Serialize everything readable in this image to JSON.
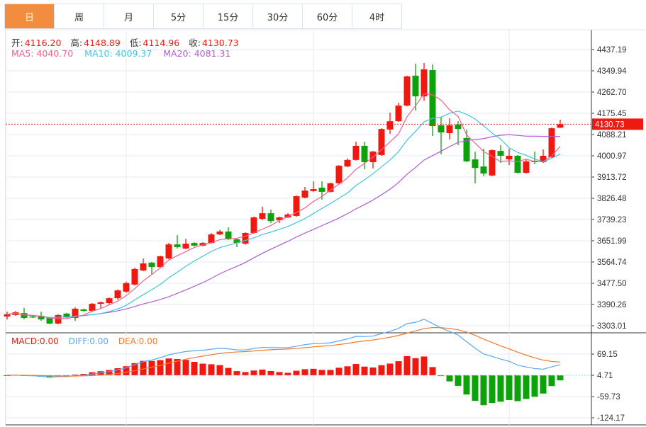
{
  "tabs": [
    {
      "label": "日",
      "active": true
    },
    {
      "label": "周"
    },
    {
      "label": "月"
    },
    {
      "label": "5分"
    },
    {
      "label": "15分"
    },
    {
      "label": "30分"
    },
    {
      "label": "60分"
    },
    {
      "label": "4时"
    }
  ],
  "ohlc_legend": {
    "open_label": "开:",
    "open": "4116.20",
    "high_label": "高:",
    "high": "4148.89",
    "low_label": "低:",
    "low": "4114.96",
    "close_label": "收:",
    "close": "4130.73"
  },
  "ma_legend": {
    "ma5": "MA5: 4040.70",
    "ma10": "MA10: 4009.37",
    "ma20": "MA20: 4081.31"
  },
  "macd_legend": {
    "macd": "MACD:0.00",
    "diff": "DIFF:0.00",
    "dea": "DEA:0.00"
  },
  "colors": {
    "up": "#f0190f",
    "down": "#0ca20c",
    "ma5": "#f0608e",
    "ma10": "#3ec6dc",
    "ma20": "#b05ccf",
    "diff": "#5aa9f0",
    "dea": "#f5792a",
    "accent": "#f28c3e"
  },
  "chart_data": {
    "type": "candlestick",
    "price_axis": {
      "ticks": [
        "4437.19",
        "4349.94",
        "4262.70",
        "4175.45",
        "4088.21",
        "4000.97",
        "3913.72",
        "3826.48",
        "3739.23",
        "3651.99",
        "3564.74",
        "3477.50",
        "3390.26",
        "3303.01"
      ],
      "range": [
        3303.01,
        4437.19
      ]
    },
    "last_price": "4130.73",
    "macd_axis": {
      "ticks": [
        "69.15",
        "4.71",
        "-59.73",
        "-124.17"
      ],
      "range": [
        -124.17,
        69.15
      ]
    },
    "grid": true,
    "candles": [
      [
        3341,
        3350,
        3361,
        3329
      ],
      [
        3347,
        3358,
        3364,
        3344
      ],
      [
        3355,
        3335,
        3376,
        3329
      ],
      [
        3341,
        3338,
        3344,
        3335
      ],
      [
        3344,
        3329,
        3361,
        3323
      ],
      [
        3335,
        3312,
        3338,
        3309
      ],
      [
        3312,
        3347,
        3350,
        3309
      ],
      [
        3353,
        3338,
        3356,
        3335
      ],
      [
        3335,
        3373,
        3379,
        3323
      ],
      [
        3370,
        3364,
        3373,
        3361
      ],
      [
        3364,
        3393,
        3396,
        3361
      ],
      [
        3393,
        3399,
        3402,
        3376
      ],
      [
        3396,
        3416,
        3419,
        3390
      ],
      [
        3416,
        3448,
        3452,
        3410
      ],
      [
        3443,
        3478,
        3484,
        3438
      ],
      [
        3472,
        3536,
        3541,
        3468
      ],
      [
        3530,
        3559,
        3579,
        3527
      ],
      [
        3562,
        3544,
        3565,
        3515
      ],
      [
        3544,
        3588,
        3591,
        3541
      ],
      [
        3579,
        3637,
        3643,
        3576
      ],
      [
        3637,
        3626,
        3675,
        3620
      ],
      [
        3620,
        3640,
        3660,
        3617
      ],
      [
        3643,
        3632,
        3646,
        3629
      ],
      [
        3632,
        3643,
        3646,
        3629
      ],
      [
        3643,
        3678,
        3684,
        3640
      ],
      [
        3678,
        3690,
        3696,
        3675
      ],
      [
        3690,
        3658,
        3707,
        3655
      ],
      [
        3658,
        3643,
        3661,
        3626
      ],
      [
        3640,
        3684,
        3687,
        3636
      ],
      [
        3684,
        3748,
        3751,
        3681
      ],
      [
        3742,
        3765,
        3792,
        3736
      ],
      [
        3765,
        3733,
        3780,
        3725
      ],
      [
        3736,
        3748,
        3751,
        3725
      ],
      [
        3748,
        3760,
        3765,
        3745
      ],
      [
        3754,
        3835,
        3838,
        3751
      ],
      [
        3829,
        3858,
        3873,
        3826
      ],
      [
        3856,
        3864,
        3896,
        3853
      ],
      [
        3870,
        3853,
        3896,
        3821
      ],
      [
        3853,
        3888,
        3891,
        3850
      ],
      [
        3888,
        3960,
        3963,
        3884
      ],
      [
        3957,
        3984,
        3990,
        3954
      ],
      [
        3984,
        4042,
        4059,
        3981
      ],
      [
        4042,
        3975,
        4059,
        3946
      ],
      [
        3975,
        4018,
        4021,
        3949
      ],
      [
        4004,
        4111,
        4114,
        4001
      ],
      [
        4109,
        4143,
        4178,
        4091
      ],
      [
        4143,
        4207,
        4219,
        4140
      ],
      [
        4207,
        4327,
        4330,
        4204
      ],
      [
        4330,
        4245,
        4379,
        4187
      ],
      [
        4245,
        4356,
        4382,
        4227
      ],
      [
        4353,
        4123,
        4376,
        4082
      ],
      [
        4126,
        4097,
        4161,
        4007
      ],
      [
        4094,
        4126,
        4155,
        4068
      ],
      [
        4129,
        4111,
        4143,
        4045
      ],
      [
        4074,
        3978,
        4109,
        3975
      ],
      [
        3986,
        3951,
        4018,
        3888
      ],
      [
        3957,
        3928,
        4030,
        3917
      ],
      [
        3920,
        4024,
        4027,
        3917
      ],
      [
        4021,
        4001,
        4045,
        3972
      ],
      [
        3986,
        4001,
        4030,
        3963
      ],
      [
        4001,
        3931,
        4004,
        3928
      ],
      [
        3931,
        3978,
        3984,
        3928
      ],
      [
        3981,
        3975,
        4018,
        3966
      ],
      [
        3975,
        4001,
        4027,
        3972
      ],
      [
        3995,
        4114,
        4117,
        3992
      ],
      [
        4116.2,
        4130.73,
        4148.89,
        4114.96
      ]
    ],
    "candle_fields": [
      "open",
      "close",
      "high",
      "low"
    ],
    "indicators": [
      "MA5",
      "MA10",
      "MA20",
      "MACD(12,26,9)"
    ]
  }
}
